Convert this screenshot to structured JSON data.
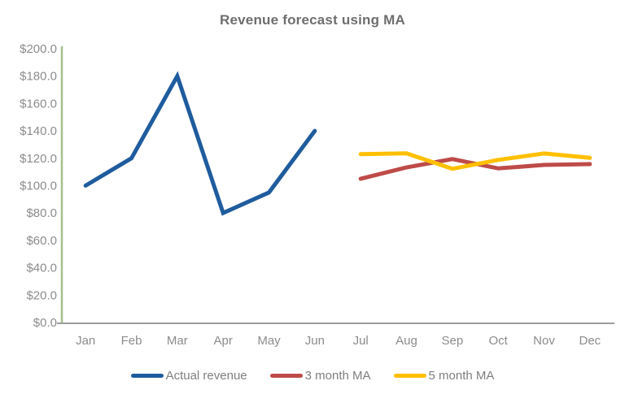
{
  "title": "Revenue forecast using MA",
  "chart_data": {
    "type": "line",
    "title": "Revenue forecast using MA",
    "categories": [
      "Jan",
      "Feb",
      "Mar",
      "Apr",
      "May",
      "Jun",
      "Jul",
      "Aug",
      "Sep",
      "Oct",
      "Nov",
      "Dec"
    ],
    "series": [
      {
        "name": "Actual revenue",
        "color": "#1F5C9E",
        "values": [
          100,
          120,
          180,
          80,
          95,
          140,
          null,
          null,
          null,
          null,
          null,
          null
        ]
      },
      {
        "name": "3 month MA",
        "color": "#BE4B48",
        "values": [
          null,
          null,
          null,
          null,
          null,
          null,
          105,
          113.3,
          119.4,
          112.6,
          115.1,
          115.7
        ]
      },
      {
        "name": "5 month MA",
        "color": "#FFC000",
        "values": [
          null,
          null,
          null,
          null,
          null,
          null,
          123,
          123.6,
          112.3,
          118.8,
          123.5,
          120.3
        ]
      }
    ],
    "xlabel": "",
    "ylabel": "",
    "ylim": [
      0,
      200
    ],
    "ytick_step": 20,
    "ytick_labels": [
      "$0.0",
      "$20.0",
      "$40.0",
      "$60.0",
      "$80.0",
      "$100.0",
      "$120.0",
      "$140.0",
      "$160.0",
      "$180.0",
      "$200.0"
    ],
    "grid": false,
    "legend_position": "bottom",
    "axis_colors": {
      "y_axis": "#A5C08D",
      "x_axis": "#9C9C9C"
    }
  },
  "styles": {
    "title_color": "#6E6E6E",
    "label_color": "#8C8C8C",
    "legend_text_color": "#7F7F7F",
    "background": "#FFFFFF"
  }
}
